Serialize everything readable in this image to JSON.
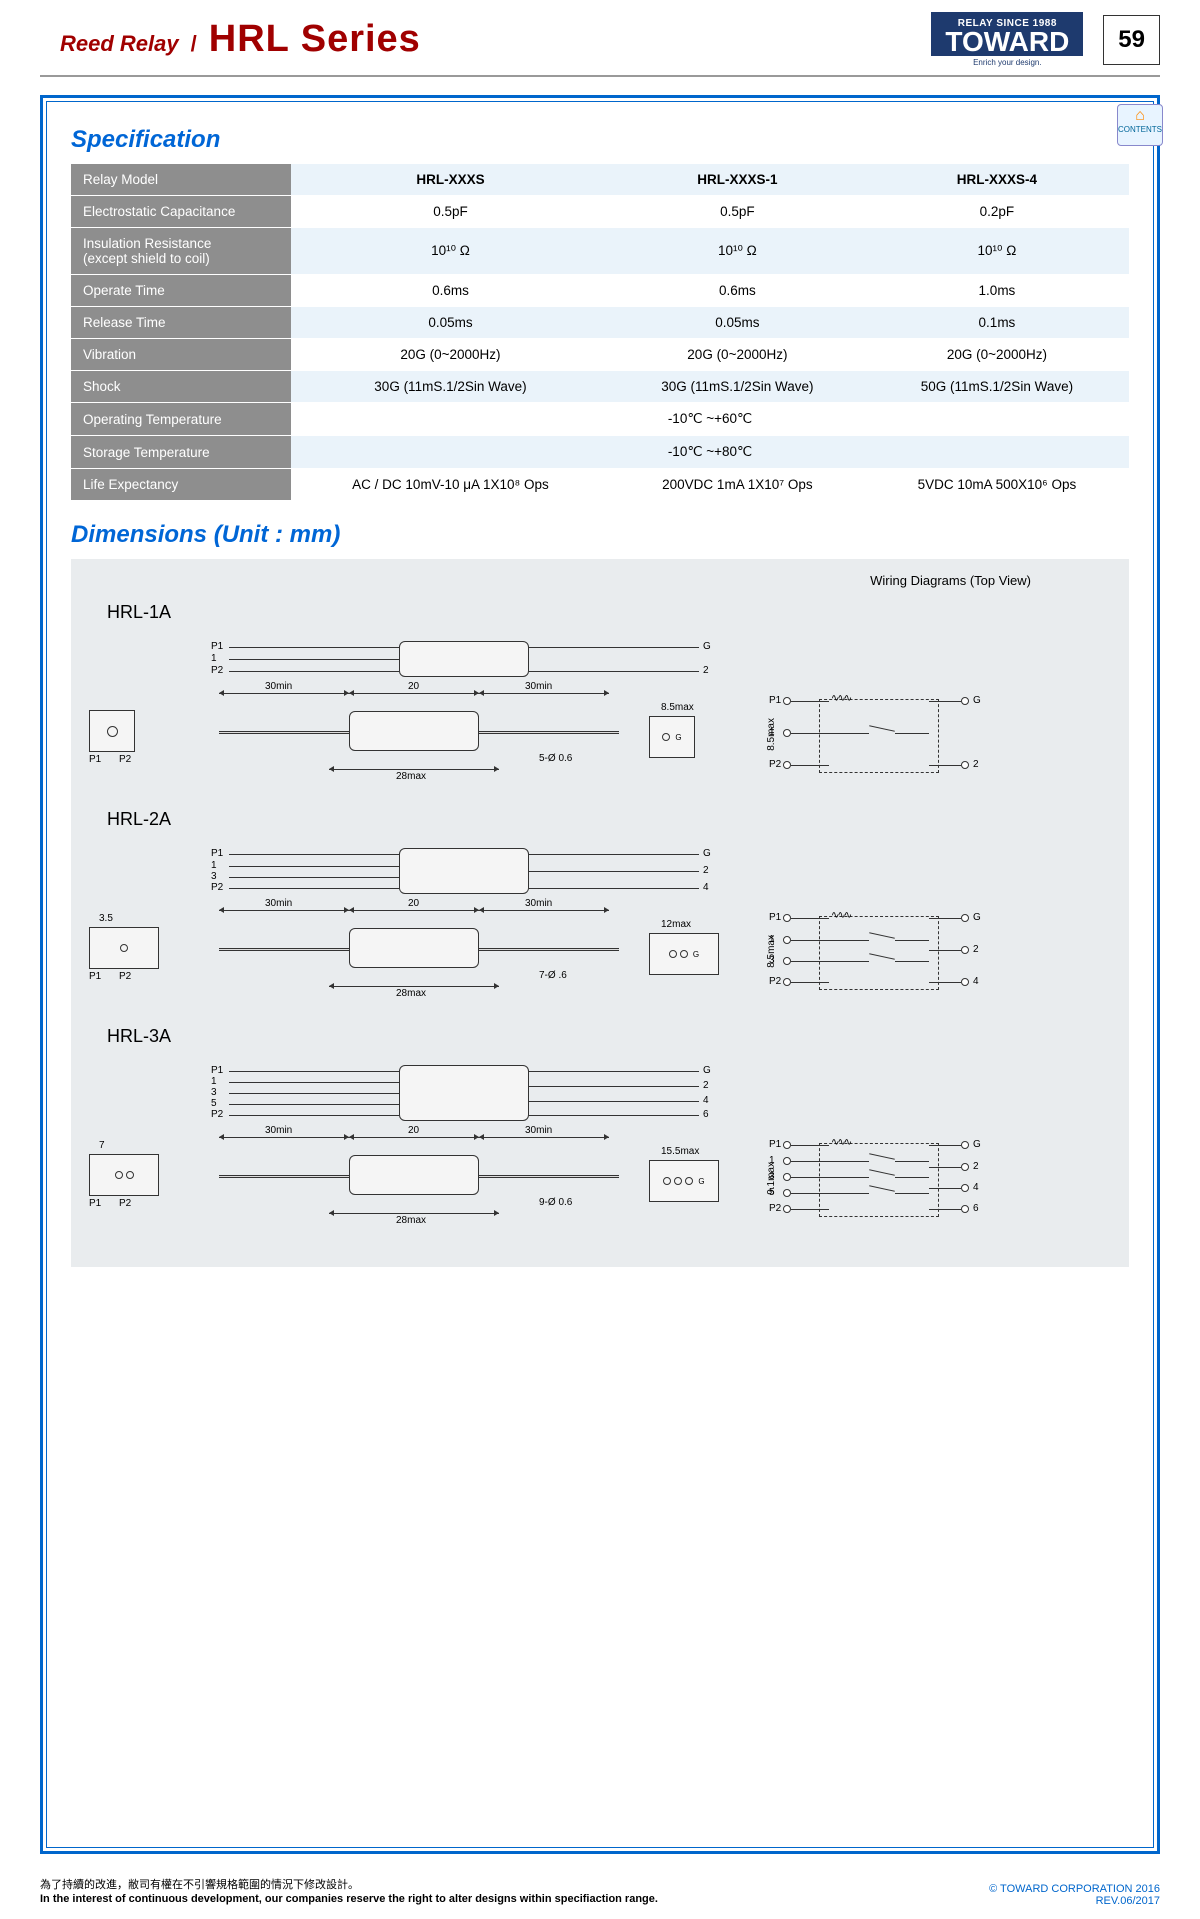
{
  "header": {
    "reed_relay": "Reed Relay",
    "slash": "/",
    "series": "HRL Series",
    "logo_top": "RELAY SINCE 1988",
    "logo_main": "TOWARD",
    "logo_sub": "Enrich your design.",
    "page_num": "59",
    "contents_tab": "CONTENTS",
    "colors": {
      "title_red": "#a00000",
      "brand_bg": "#1e3a6e",
      "frame_blue": "#0066cc",
      "heading_blue": "#0066d6",
      "row_header_bg": "#8e8e8e",
      "alt_row_bg": "#eaf3fa"
    }
  },
  "spec": {
    "title": "Specification",
    "row_labels": [
      "Relay Model",
      "Electrostatic Capacitance",
      "Insulation Resistance\n(except shield to coil)",
      "Operate Time",
      "Release Time",
      "Vibration",
      "Shock",
      "Operating Temperature",
      "Storage Temperature",
      "Life Expectancy"
    ],
    "models": [
      "HRL-XXXS",
      "HRL-XXXS-1",
      "HRL-XXXS-4"
    ],
    "rows": {
      "cap": [
        "0.5pF",
        "0.5pF",
        "0.2pF"
      ],
      "ins": [
        "10¹⁰ Ω",
        "10¹⁰ Ω",
        "10¹⁰ Ω"
      ],
      "op_time": [
        "0.6ms",
        "0.6ms",
        "1.0ms"
      ],
      "rel_time": [
        "0.05ms",
        "0.05ms",
        "0.1ms"
      ],
      "vib": [
        "20G (0~2000Hz)",
        "20G (0~2000Hz)",
        "20G (0~2000Hz)"
      ],
      "shock": [
        "30G (11mS.1/2Sin Wave)",
        "30G (11mS.1/2Sin Wave)",
        "50G (11mS.1/2Sin Wave)"
      ],
      "op_temp": "-10℃ ~+60℃",
      "st_temp": "-10℃ ~+80℃",
      "life": [
        "AC / DC 10mV-10 μA 1X10⁸ Ops",
        "200VDC 1mA 1X10⁷ Ops",
        "5VDC 10mA 500X10⁶ Ops"
      ]
    }
  },
  "dim": {
    "title": "Dimensions (Unit : mm)",
    "wiring_label": "Wiring Diagrams (Top View)",
    "models": [
      {
        "name": "HRL-1A",
        "top_pins_left": [
          "P1",
          "1",
          "P2"
        ],
        "top_pins_right": [
          "G",
          "2"
        ],
        "dims": {
          "lead_left": "30min",
          "body_w": "20",
          "lead_right": "30min",
          "body_bot": "28max",
          "hole": "5-Ø 0.6",
          "conn_w": "8.5max",
          "conn_h": "8.5max"
        },
        "conn_left_pins": [
          "P1",
          "P2"
        ],
        "conn_holes": 1,
        "wiring_pins": {
          "left": [
            "P1",
            "1",
            "P2"
          ],
          "right": [
            "G",
            "2"
          ]
        }
      },
      {
        "name": "HRL-2A",
        "top_pins_left": [
          "P1",
          "1",
          "3",
          "P2"
        ],
        "top_pins_right": [
          "G",
          "2",
          "4"
        ],
        "dims": {
          "lead_left": "30min",
          "body_w": "20",
          "lead_right": "30min",
          "body_bot": "28max",
          "hole": "7-Ø .6",
          "conn_w": "12max",
          "conn_h": "8.5max",
          "conn_left_w": "3.5"
        },
        "conn_left_pins": [
          "P1",
          "P2"
        ],
        "conn_holes": 2,
        "wiring_pins": {
          "left": [
            "P1",
            "1",
            "3",
            "P2"
          ],
          "right": [
            "G",
            "2",
            "4"
          ]
        }
      },
      {
        "name": "HRL-3A",
        "top_pins_left": [
          "P1",
          "1",
          "3",
          "5",
          "P2"
        ],
        "top_pins_right": [
          "G",
          "2",
          "4",
          "6"
        ],
        "dims": {
          "lead_left": "30min",
          "body_w": "20",
          "lead_right": "30min",
          "body_bot": "28max",
          "hole": "9-Ø 0.6",
          "conn_w": "15.5max",
          "conn_h": "9.1max",
          "conn_left_w": "7"
        },
        "conn_left_pins": [
          "P1",
          "P2"
        ],
        "conn_holes": 3,
        "wiring_pins": {
          "left": [
            "P1",
            "1",
            "3",
            "5",
            "P2"
          ],
          "right": [
            "G",
            "2",
            "4",
            "6"
          ]
        }
      }
    ]
  },
  "footer": {
    "cn": "為了持續的改進，敝司有權在不引響規格範圍的情況下修改設計。",
    "en": "In the interest of continuous development, our companies reserve the right to alter designs within specifiaction range.",
    "copyright": "© TOWARD CORPORATION 2016",
    "rev": "REV.06/2017"
  }
}
